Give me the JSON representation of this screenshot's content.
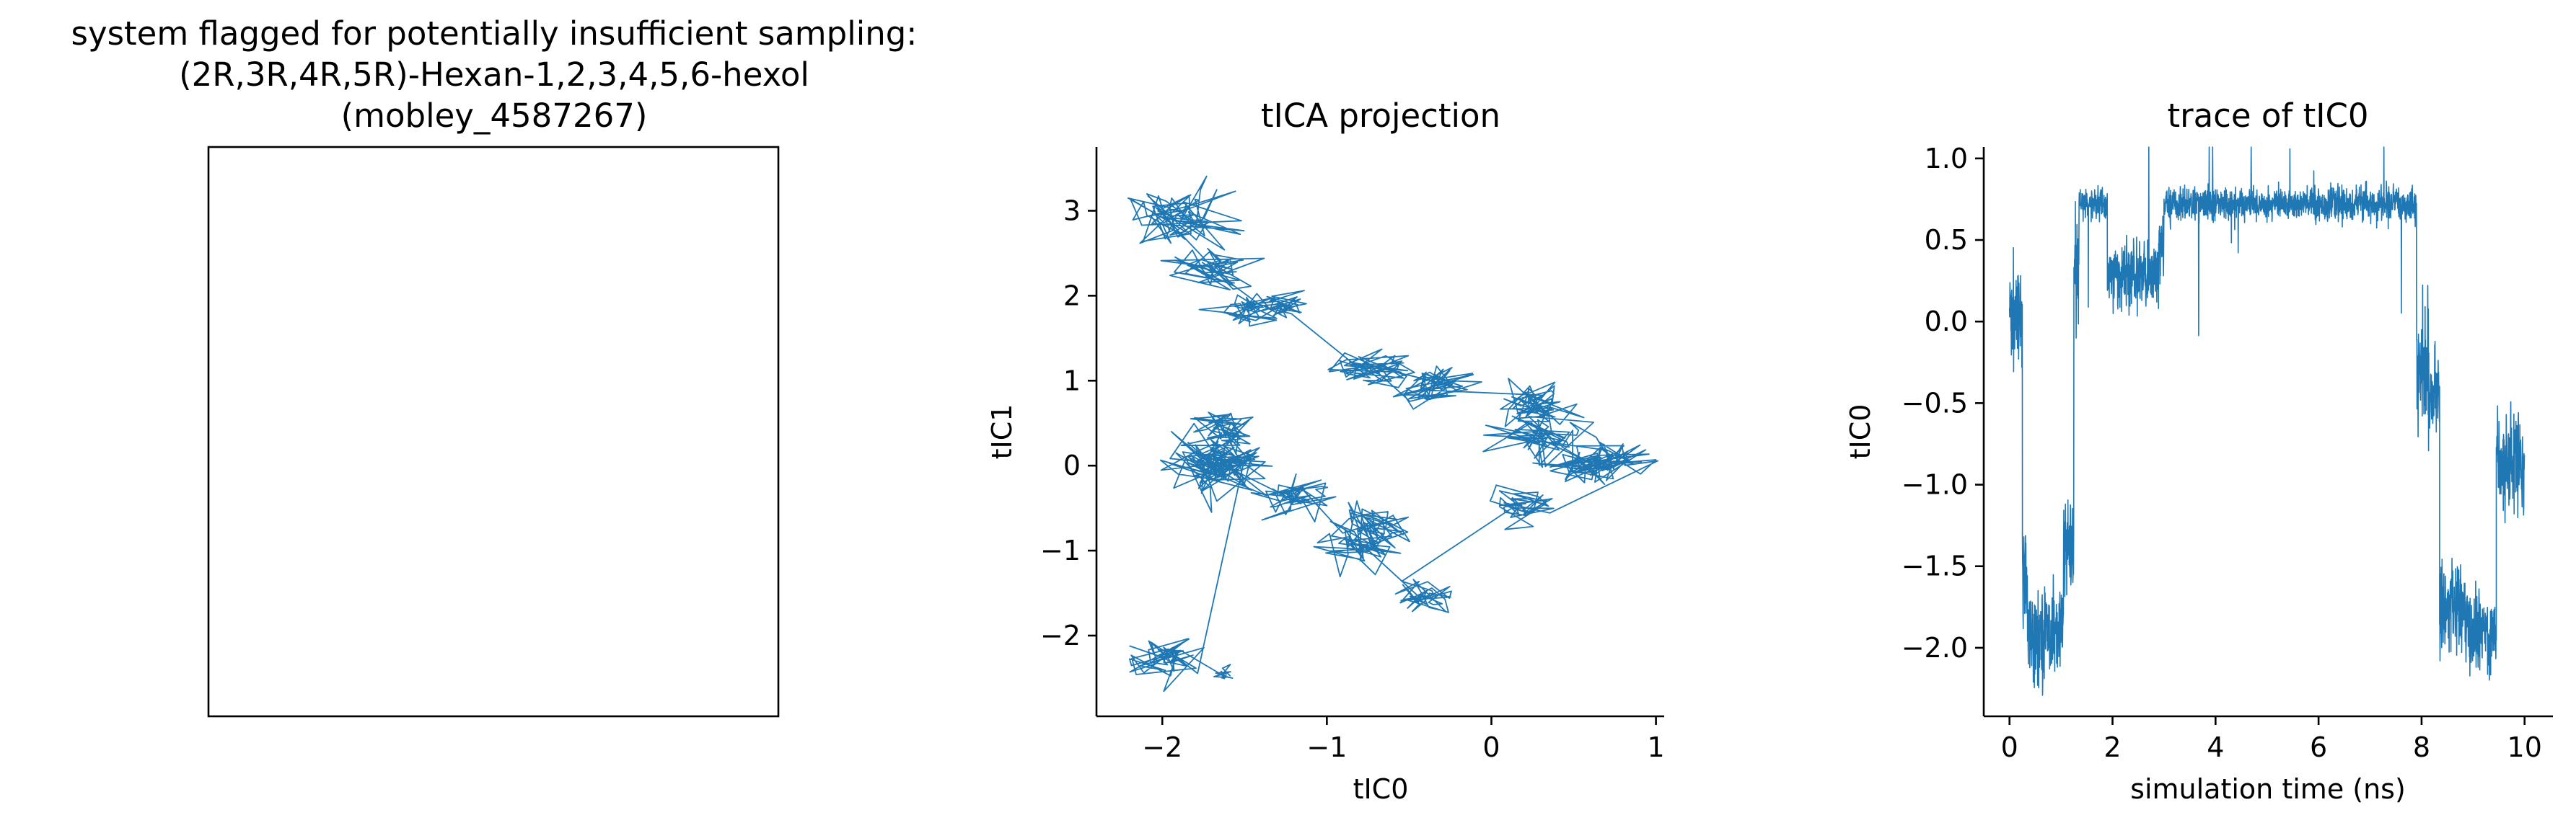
{
  "figure": {
    "structure_panel_title": [
      "system flagged for potentially insufficient sampling:",
      "(2R,3R,4R,5R)-Hexan-1,2,3,4,5,6-hexol",
      "(mobley_4587267)"
    ]
  },
  "colors": {
    "series": "#1f77b4",
    "axes": "#000000",
    "background": "#ffffff"
  },
  "chart_data": [
    {
      "type": "line",
      "title": "tICA projection",
      "xlabel": "tIC0",
      "ylabel": "tIC1",
      "xlim": [
        -2.4,
        1.05
      ],
      "ylim": [
        -2.95,
        3.75
      ],
      "xticks": [
        -2,
        -1,
        0,
        1
      ],
      "xtick_labels": [
        "−2",
        "−1",
        "0",
        "1"
      ],
      "yticks": [
        -2,
        -1,
        0,
        1,
        2,
        3
      ],
      "ytick_labels": [
        "−2",
        "−1",
        "0",
        "1",
        "2",
        "3"
      ],
      "grid": false,
      "series": [
        {
          "color": "#1f77b4",
          "visits": [
            [
              -1.9,
              2.9,
              0.17
            ],
            [
              -1.7,
              2.3,
              0.12
            ],
            [
              -1.45,
              1.85,
              0.1
            ],
            [
              -1.25,
              1.9,
              0.08
            ],
            [
              -0.75,
              1.15,
              0.12
            ],
            [
              -0.35,
              0.95,
              0.12
            ],
            [
              0.25,
              0.7,
              0.12
            ],
            [
              0.3,
              0.35,
              0.14
            ],
            [
              0.55,
              0.0,
              0.14
            ],
            [
              0.75,
              0.05,
              0.1
            ],
            [
              0.2,
              -0.45,
              0.1
            ],
            [
              -0.4,
              -1.55,
              0.1
            ],
            [
              -0.8,
              -1.0,
              0.12
            ],
            [
              -0.75,
              -0.75,
              0.12
            ],
            [
              -1.2,
              -0.35,
              0.12
            ],
            [
              -1.65,
              -0.05,
              0.15
            ],
            [
              -1.6,
              0.45,
              0.12
            ],
            [
              -1.65,
              0.1,
              0.14
            ],
            [
              -2.0,
              -2.25,
              0.12
            ],
            [
              -1.6,
              -2.45,
              0.04
            ]
          ]
        }
      ]
    },
    {
      "type": "line",
      "title": "trace of tIC0",
      "xlabel": "simulation time (ns)",
      "ylabel": "tIC0",
      "xlim": [
        -0.5,
        10.55
      ],
      "ylim": [
        -2.42,
        1.07
      ],
      "xticks": [
        0,
        2,
        4,
        6,
        8,
        10
      ],
      "xtick_labels": [
        "0",
        "2",
        "4",
        "6",
        "8",
        "10"
      ],
      "yticks": [
        -2.0,
        -1.5,
        -1.0,
        -0.5,
        0.0,
        0.5,
        1.0
      ],
      "ytick_labels": [
        "−2.0",
        "−1.5",
        "−1.0",
        "−0.5",
        "0.0",
        "0.5",
        "1.0"
      ],
      "grid": false,
      "series": [
        {
          "color": "#1f77b4",
          "segments": [
            [
              0.0,
              0.25,
              0.0,
              0.18
            ],
            [
              0.25,
              0.35,
              -1.5,
              0.2
            ],
            [
              0.35,
              1.05,
              -1.9,
              0.13
            ],
            [
              1.05,
              1.25,
              -1.4,
              0.15
            ],
            [
              1.25,
              1.35,
              0.3,
              0.15
            ],
            [
              1.35,
              1.9,
              0.72,
              0.05
            ],
            [
              1.9,
              2.9,
              0.28,
              0.1
            ],
            [
              2.9,
              3.0,
              0.45,
              0.1
            ],
            [
              3.0,
              7.9,
              0.72,
              0.05
            ],
            [
              7.9,
              8.15,
              -0.3,
              0.2
            ],
            [
              8.15,
              8.35,
              -0.45,
              0.12
            ],
            [
              8.35,
              8.85,
              -1.75,
              0.13
            ],
            [
              8.85,
              9.45,
              -1.9,
              0.12
            ],
            [
              9.45,
              9.6,
              -0.85,
              0.15
            ],
            [
              9.6,
              10.0,
              -0.85,
              0.15
            ]
          ]
        }
      ]
    }
  ]
}
